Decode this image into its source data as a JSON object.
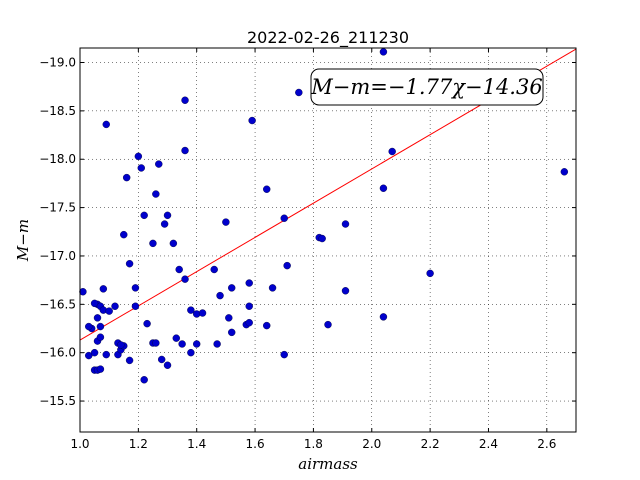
{
  "chart_data": {
    "type": "scatter",
    "title": "2022-02-26_211230",
    "xlabel": "airmass",
    "ylabel": "M−m",
    "xlim": [
      1.0,
      2.7
    ],
    "ylim": [
      -19.15,
      -15.18
    ],
    "y_inverted": true,
    "grid": true,
    "x_ticks": [
      1.0,
      1.2,
      1.4,
      1.6,
      1.8,
      2.0,
      2.2,
      2.4,
      2.6
    ],
    "x_tick_labels": [
      "1.0",
      "1.2",
      "1.4",
      "1.6",
      "1.8",
      "2.0",
      "2.2",
      "2.4",
      "2.6"
    ],
    "y_ticks": [
      -15.5,
      -16.0,
      -16.5,
      -17.0,
      -17.5,
      -18.0,
      -18.5,
      -19.0
    ],
    "y_tick_labels": [
      "−15.5",
      "−16.0",
      "−16.5",
      "−17.0",
      "−17.5",
      "−18.0",
      "−18.5",
      "−19.0"
    ],
    "annotation": "M−m=−1.77χ−14.36",
    "fit": {
      "slope": -1.77,
      "intercept": -14.36,
      "color": "#ff0000"
    },
    "point_color": "#0000cc",
    "points": [
      [
        1.01,
        -16.63
      ],
      [
        1.03,
        -15.97
      ],
      [
        1.04,
        -16.25
      ],
      [
        1.03,
        -16.27
      ],
      [
        1.05,
        -15.82
      ],
      [
        1.06,
        -15.82
      ],
      [
        1.07,
        -15.83
      ],
      [
        1.05,
        -16.0
      ],
      [
        1.06,
        -16.12
      ],
      [
        1.07,
        -16.16
      ],
      [
        1.06,
        -16.36
      ],
      [
        1.07,
        -16.27
      ],
      [
        1.06,
        -16.5
      ],
      [
        1.05,
        -16.51
      ],
      [
        1.07,
        -16.48
      ],
      [
        1.08,
        -16.44
      ],
      [
        1.1,
        -16.43
      ],
      [
        1.08,
        -16.66
      ],
      [
        1.09,
        -15.98
      ],
      [
        1.12,
        -16.48
      ],
      [
        1.13,
        -15.98
      ],
      [
        1.14,
        -16.03
      ],
      [
        1.15,
        -16.07
      ],
      [
        1.13,
        -16.1
      ],
      [
        1.14,
        -16.08
      ],
      [
        1.17,
        -15.92
      ],
      [
        1.19,
        -16.48
      ],
      [
        1.19,
        -16.67
      ],
      [
        1.17,
        -16.92
      ],
      [
        1.22,
        -15.72
      ],
      [
        1.23,
        -16.3
      ],
      [
        1.25,
        -16.1
      ],
      [
        1.26,
        -16.1
      ],
      [
        1.28,
        -15.93
      ],
      [
        1.3,
        -15.87
      ],
      [
        1.33,
        -16.15
      ],
      [
        1.35,
        -16.09
      ],
      [
        1.38,
        -16.0
      ],
      [
        1.4,
        -16.09
      ],
      [
        1.15,
        -17.22
      ],
      [
        1.25,
        -17.13
      ],
      [
        1.22,
        -17.42
      ],
      [
        1.29,
        -17.33
      ],
      [
        1.3,
        -17.42
      ],
      [
        1.32,
        -17.13
      ],
      [
        1.34,
        -16.86
      ],
      [
        1.36,
        -16.76
      ],
      [
        1.38,
        -16.44
      ],
      [
        1.4,
        -16.4
      ],
      [
        1.42,
        -16.41
      ],
      [
        1.16,
        -17.81
      ],
      [
        1.21,
        -17.91
      ],
      [
        1.2,
        -18.03
      ],
      [
        1.26,
        -17.64
      ],
      [
        1.27,
        -17.95
      ],
      [
        1.36,
        -18.09
      ],
      [
        1.09,
        -18.36
      ],
      [
        1.36,
        -18.61
      ],
      [
        1.47,
        -16.09
      ],
      [
        1.51,
        -16.36
      ],
      [
        1.52,
        -16.21
      ],
      [
        1.48,
        -16.59
      ],
      [
        1.52,
        -16.67
      ],
      [
        1.46,
        -16.86
      ],
      [
        1.57,
        -16.29
      ],
      [
        1.58,
        -16.31
      ],
      [
        1.64,
        -16.28
      ],
      [
        1.58,
        -16.48
      ],
      [
        1.58,
        -16.72
      ],
      [
        1.66,
        -16.67
      ],
      [
        1.7,
        -15.98
      ],
      [
        1.71,
        -16.9
      ],
      [
        1.5,
        -17.35
      ],
      [
        1.7,
        -17.39
      ],
      [
        1.64,
        -17.69
      ],
      [
        1.59,
        -18.4
      ],
      [
        1.75,
        -18.69
      ],
      [
        1.82,
        -17.19
      ],
      [
        1.83,
        -17.18
      ],
      [
        1.85,
        -16.29
      ],
      [
        1.91,
        -16.64
      ],
      [
        1.91,
        -17.33
      ],
      [
        2.04,
        -16.37
      ],
      [
        2.04,
        -17.7
      ],
      [
        2.07,
        -18.08
      ],
      [
        2.04,
        -19.11
      ],
      [
        2.2,
        -16.82
      ],
      [
        2.66,
        -17.87
      ]
    ]
  }
}
